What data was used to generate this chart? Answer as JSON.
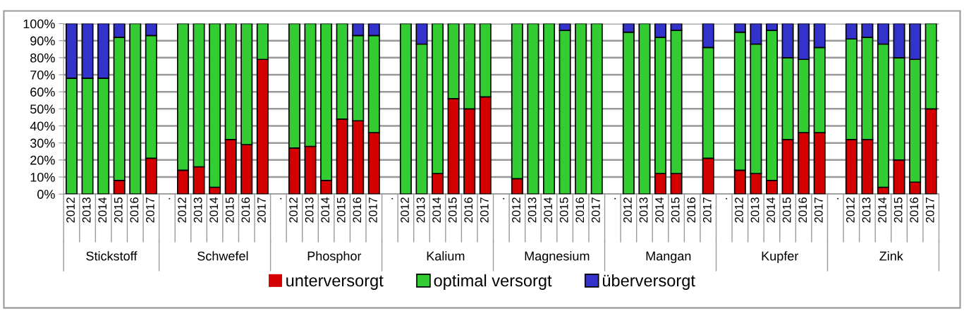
{
  "chart_data": {
    "type": "bar",
    "stacked": true,
    "categories": [
      "2012",
      "2013",
      "2014",
      "2015",
      "2016",
      "2017",
      ".",
      "2012",
      "2013",
      "2014",
      "2015",
      "2016",
      "2017",
      ".",
      "2012",
      "2013",
      "2014",
      "2015",
      "2016",
      "2017",
      ".",
      "2012",
      "2013",
      "2014",
      "2015",
      "2016",
      "2017",
      ".",
      "2012",
      "2013",
      "2014",
      "2015",
      "2016",
      "2017",
      ".",
      "2012",
      "2013",
      "2014",
      "2015",
      "2016",
      "2017",
      ".",
      "2012",
      "2013",
      "2014",
      "2015",
      "2016",
      "2017",
      ".",
      "2012",
      "2013",
      "2014",
      "2015",
      "2016",
      "2017"
    ],
    "series": [
      {
        "name": "unterversorgt",
        "color": "#d40000",
        "values": [
          0,
          0,
          0,
          8,
          0,
          21,
          0,
          14,
          16,
          4,
          32,
          29,
          79,
          0,
          27,
          28,
          8,
          44,
          43,
          36,
          0,
          0,
          0,
          12,
          56,
          50,
          57,
          0,
          9,
          0,
          0,
          0,
          0,
          0,
          0,
          0,
          0,
          12,
          12,
          0,
          21,
          0,
          14,
          12,
          8,
          32,
          36,
          36,
          0,
          32,
          32,
          4,
          20,
          7,
          50
        ]
      },
      {
        "name": "optimal versorgt",
        "color": "#33cc33",
        "values": [
          68,
          68,
          68,
          84,
          100,
          72,
          0,
          86,
          84,
          96,
          68,
          71,
          21,
          0,
          73,
          72,
          92,
          56,
          50,
          57,
          0,
          100,
          88,
          88,
          44,
          50,
          43,
          0,
          91,
          100,
          100,
          96,
          100,
          100,
          0,
          95,
          100,
          80,
          84,
          0,
          65,
          0,
          81,
          76,
          88,
          48,
          43,
          50,
          0,
          59,
          60,
          84,
          60,
          72,
          50
        ]
      },
      {
        "name": "überversorgt",
        "color": "#3333cc",
        "values": [
          32,
          32,
          32,
          8,
          0,
          7,
          0,
          0,
          0,
          0,
          0,
          0,
          0,
          0,
          0,
          0,
          0,
          0,
          7,
          7,
          0,
          0,
          12,
          0,
          0,
          0,
          0,
          0,
          0,
          0,
          0,
          4,
          0,
          0,
          0,
          5,
          0,
          8,
          4,
          0,
          14,
          0,
          5,
          12,
          4,
          20,
          21,
          14,
          0,
          9,
          8,
          12,
          20,
          21,
          0
        ]
      }
    ],
    "ylim": [
      0,
      100
    ],
    "yticks": [
      {
        "value": 0,
        "label": "0%"
      },
      {
        "value": 10,
        "label": "10%"
      },
      {
        "value": 20,
        "label": "20%"
      },
      {
        "value": 30,
        "label": "30%"
      },
      {
        "value": 40,
        "label": "40%"
      },
      {
        "value": 50,
        "label": "50%"
      },
      {
        "value": 60,
        "label": "60%"
      },
      {
        "value": 70,
        "label": "70%"
      },
      {
        "value": 80,
        "label": "80%"
      },
      {
        "value": 90,
        "label": "90%"
      },
      {
        "value": 100,
        "label": "100%"
      }
    ],
    "grid": "y",
    "legend": "bottom",
    "annotations": [
      "Stickstoff",
      "Schwefel",
      "Phosphor",
      "Kalium",
      "Magnesium",
      "Mangan",
      "Kupfer",
      "Zink"
    ]
  }
}
